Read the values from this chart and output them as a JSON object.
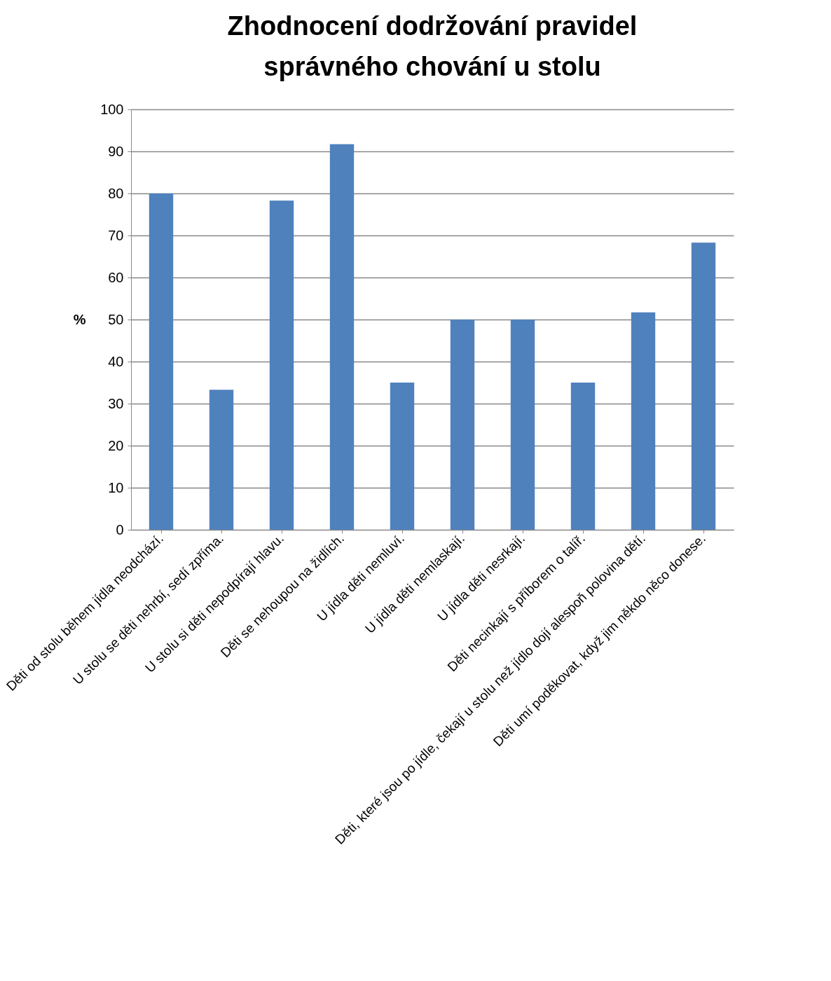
{
  "chart_data": {
    "type": "bar",
    "title": "Zhodnocení dodržování pravidel správného chování u stolu",
    "ylabel": "%",
    "categories": [
      "Děti od stolu během jídla neodchází.",
      "U stolu se děti nehrbí, sedí zpříma.",
      "U stolu si děti nepodpírají hlavu.",
      "Děti se nehoupou na židlích.",
      "U jídla děti nemluví.",
      "U jídla děti nemlaskají.",
      "U jídla děti nesrkají.",
      "Děti necinkají s příborem o talíř.",
      "Děti, které jsou po jídle, čekají u stolu než jídlo dojí alespoň polovina dětí.",
      "Děti umí poděkovat, když jim někdo něco donese."
    ],
    "values": [
      80,
      33.3,
      78.3,
      91.7,
      35,
      50,
      50,
      35,
      51.7,
      68.3
    ],
    "color": "#4f81bd",
    "ylim": [
      0,
      100
    ],
    "yticks": [
      0,
      10,
      20,
      30,
      40,
      50,
      60,
      70,
      80,
      90,
      100
    ],
    "grid": "y"
  }
}
